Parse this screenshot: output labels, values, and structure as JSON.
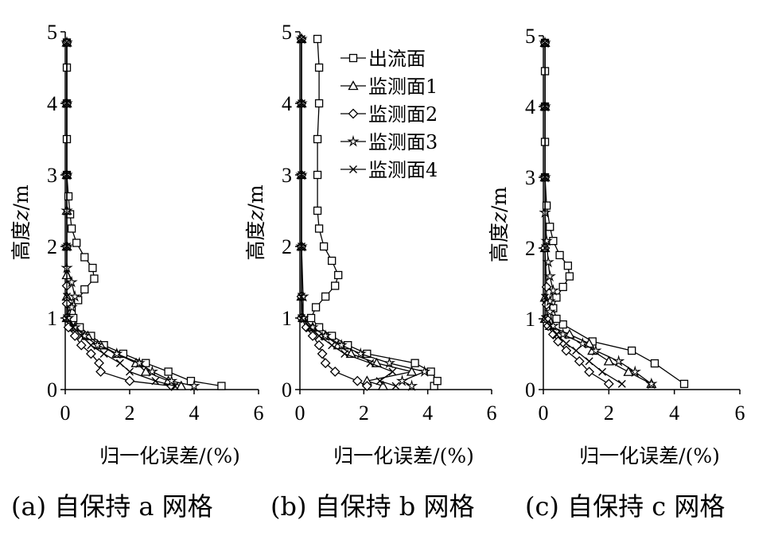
{
  "legend": [
    "出流面",
    "监测面1",
    "监测面2",
    "监测面3",
    "监测面4"
  ],
  "captions": [
    "(a)  自保持 a 网格",
    "(b)  自保持 b 网格",
    "(c)  自保持 c 网格"
  ],
  "chart_data": [
    {
      "type": "line",
      "panel": "a",
      "xlabel": "归一化误差/(%)",
      "ylabel": "高度z/m",
      "ylabel_italic": "z",
      "xlim": [
        0,
        6
      ],
      "ylim": [
        0,
        5
      ],
      "xticks": [
        0,
        2,
        4,
        6
      ],
      "yticks": [
        0,
        1,
        2,
        3,
        4,
        5
      ],
      "series": [
        {
          "name": "出流面",
          "marker": "square",
          "points": [
            [
              4.85,
              0.05
            ],
            [
              3.9,
              0.12
            ],
            [
              3.2,
              0.25
            ],
            [
              2.5,
              0.37
            ],
            [
              1.8,
              0.5
            ],
            [
              1.2,
              0.62
            ],
            [
              0.8,
              0.75
            ],
            [
              0.45,
              0.87
            ],
            [
              0.25,
              1.0
            ],
            [
              0.2,
              1.1
            ],
            [
              0.4,
              1.25
            ],
            [
              0.6,
              1.4
            ],
            [
              0.9,
              1.55
            ],
            [
              0.85,
              1.7
            ],
            [
              0.6,
              1.85
            ],
            [
              0.35,
              2.05
            ],
            [
              0.2,
              2.25
            ],
            [
              0.15,
              2.45
            ],
            [
              0.1,
              2.7
            ],
            [
              0.05,
              3.0
            ],
            [
              0.05,
              3.5
            ],
            [
              0.05,
              4.0
            ],
            [
              0.05,
              4.5
            ],
            [
              0.05,
              4.85
            ]
          ]
        },
        {
          "name": "监测面1",
          "marker": "triangle",
          "points": [
            [
              3.6,
              0.05
            ],
            [
              3.2,
              0.12
            ],
            [
              2.5,
              0.25
            ],
            [
              2.2,
              0.37
            ],
            [
              1.6,
              0.5
            ],
            [
              1.1,
              0.62
            ],
            [
              0.7,
              0.75
            ],
            [
              0.3,
              0.87
            ],
            [
              0.05,
              1.0
            ],
            [
              0.05,
              1.3
            ],
            [
              0.05,
              1.6
            ],
            [
              0.05,
              2.0
            ],
            [
              0.05,
              2.5
            ],
            [
              0.05,
              3.0
            ],
            [
              0.05,
              4.0
            ],
            [
              0.05,
              4.85
            ]
          ]
        },
        {
          "name": "监测面2",
          "marker": "diamond",
          "points": [
            [
              3.3,
              0.05
            ],
            [
              2.0,
              0.12
            ],
            [
              1.1,
              0.25
            ],
            [
              1.05,
              0.37
            ],
            [
              0.8,
              0.5
            ],
            [
              0.5,
              0.62
            ],
            [
              0.3,
              0.75
            ],
            [
              0.1,
              0.87
            ],
            [
              0.05,
              1.0
            ],
            [
              0.05,
              1.2
            ],
            [
              0.05,
              1.45
            ],
            [
              0.05,
              2.0
            ],
            [
              0.05,
              3.0
            ],
            [
              0.05,
              4.0
            ],
            [
              0.05,
              4.85
            ]
          ]
        },
        {
          "name": "监测面3",
          "marker": "star",
          "points": [
            [
              4.0,
              0.05
            ],
            [
              3.3,
              0.12
            ],
            [
              2.7,
              0.25
            ],
            [
              2.3,
              0.37
            ],
            [
              1.6,
              0.5
            ],
            [
              1.0,
              0.62
            ],
            [
              0.6,
              0.75
            ],
            [
              0.3,
              0.87
            ],
            [
              0.1,
              1.0
            ],
            [
              0.2,
              1.15
            ],
            [
              0.3,
              1.3
            ],
            [
              0.2,
              1.5
            ],
            [
              0.05,
              1.7
            ],
            [
              0.05,
              2.0
            ],
            [
              0.05,
              2.5
            ],
            [
              0.05,
              3.0
            ],
            [
              0.05,
              4.0
            ],
            [
              0.05,
              4.85
            ]
          ]
        },
        {
          "name": "监测面4",
          "marker": "x",
          "points": [
            [
              3.4,
              0.05
            ],
            [
              2.8,
              0.12
            ],
            [
              2.0,
              0.25
            ],
            [
              1.7,
              0.37
            ],
            [
              1.2,
              0.5
            ],
            [
              0.8,
              0.62
            ],
            [
              0.5,
              0.75
            ],
            [
              0.25,
              0.87
            ],
            [
              0.05,
              1.0
            ],
            [
              0.05,
              1.3
            ],
            [
              0.05,
              2.0
            ],
            [
              0.05,
              3.0
            ],
            [
              0.05,
              4.0
            ],
            [
              0.05,
              4.85
            ]
          ]
        }
      ]
    },
    {
      "type": "line",
      "panel": "b",
      "xlabel": "归一化误差/(%)",
      "ylabel": "高度z/m",
      "ylabel_italic": "z",
      "xlim": [
        0,
        6
      ],
      "ylim": [
        0,
        5
      ],
      "xticks": [
        0,
        2,
        4,
        6
      ],
      "yticks": [
        0,
        1,
        2,
        3,
        4,
        5
      ],
      "series": [
        {
          "name": "出流面",
          "marker": "square",
          "points": [
            [
              4.2,
              0.05
            ],
            [
              4.3,
              0.12
            ],
            [
              4.1,
              0.25
            ],
            [
              3.6,
              0.37
            ],
            [
              2.1,
              0.5
            ],
            [
              1.5,
              0.62
            ],
            [
              1.0,
              0.75
            ],
            [
              0.6,
              0.87
            ],
            [
              0.35,
              1.0
            ],
            [
              0.5,
              1.15
            ],
            [
              0.8,
              1.3
            ],
            [
              1.1,
              1.45
            ],
            [
              1.2,
              1.6
            ],
            [
              1.0,
              1.8
            ],
            [
              0.75,
              2.0
            ],
            [
              0.6,
              2.25
            ],
            [
              0.55,
              2.5
            ],
            [
              0.55,
              3.0
            ],
            [
              0.55,
              3.5
            ],
            [
              0.6,
              4.0
            ],
            [
              0.6,
              4.5
            ],
            [
              0.55,
              4.9
            ]
          ]
        },
        {
          "name": "监测面1",
          "marker": "triangle",
          "points": [
            [
              2.6,
              0.05
            ],
            [
              2.1,
              0.12
            ],
            [
              3.5,
              0.25
            ],
            [
              2.4,
              0.37
            ],
            [
              1.6,
              0.5
            ],
            [
              1.2,
              0.62
            ],
            [
              0.8,
              0.75
            ],
            [
              0.4,
              0.87
            ],
            [
              0.1,
              1.0
            ],
            [
              0.05,
              1.3
            ],
            [
              0.05,
              2.0
            ],
            [
              0.05,
              3.0
            ],
            [
              0.05,
              4.0
            ],
            [
              0.05,
              4.9
            ]
          ]
        },
        {
          "name": "监测面2",
          "marker": "diamond",
          "points": [
            [
              2.1,
              0.05
            ],
            [
              1.8,
              0.12
            ],
            [
              1.1,
              0.25
            ],
            [
              0.8,
              0.37
            ],
            [
              0.7,
              0.5
            ],
            [
              0.6,
              0.62
            ],
            [
              0.4,
              0.75
            ],
            [
              0.2,
              0.87
            ],
            [
              0.05,
              1.0
            ],
            [
              0.05,
              1.3
            ],
            [
              0.05,
              2.0
            ],
            [
              0.05,
              3.0
            ],
            [
              0.05,
              4.0
            ],
            [
              0.05,
              4.9
            ]
          ]
        },
        {
          "name": "监测面3",
          "marker": "star",
          "points": [
            [
              3.5,
              0.05
            ],
            [
              3.2,
              0.12
            ],
            [
              3.9,
              0.25
            ],
            [
              2.8,
              0.37
            ],
            [
              1.9,
              0.5
            ],
            [
              1.3,
              0.62
            ],
            [
              0.8,
              0.75
            ],
            [
              0.4,
              0.87
            ],
            [
              0.1,
              1.0
            ],
            [
              0.1,
              1.3
            ],
            [
              0.05,
              2.0
            ],
            [
              0.05,
              3.0
            ],
            [
              0.05,
              4.0
            ],
            [
              0.05,
              4.9
            ]
          ]
        },
        {
          "name": "监测面4",
          "marker": "x",
          "points": [
            [
              3.0,
              0.05
            ],
            [
              2.5,
              0.12
            ],
            [
              2.9,
              0.25
            ],
            [
              2.2,
              0.37
            ],
            [
              1.4,
              0.5
            ],
            [
              1.0,
              0.62
            ],
            [
              0.6,
              0.75
            ],
            [
              0.3,
              0.87
            ],
            [
              0.05,
              1.0
            ],
            [
              0.05,
              1.3
            ],
            [
              0.05,
              2.0
            ],
            [
              0.05,
              3.0
            ],
            [
              0.05,
              4.0
            ],
            [
              0.05,
              4.9
            ]
          ]
        }
      ]
    },
    {
      "type": "line",
      "panel": "c",
      "xlabel": "归一化误差/(%)",
      "ylabel": "高度z/m",
      "ylabel_italic": "z",
      "xlim": [
        0,
        6
      ],
      "ylim": [
        0,
        5
      ],
      "xticks": [
        0,
        2,
        4,
        6
      ],
      "yticks": [
        0,
        1,
        2,
        3,
        4,
        5
      ],
      "series": [
        {
          "name": "出流面",
          "marker": "square",
          "points": [
            [
              4.3,
              0.08
            ],
            [
              3.4,
              0.37
            ],
            [
              2.7,
              0.55
            ],
            [
              1.5,
              0.68
            ],
            [
              0.6,
              0.92
            ],
            [
              0.4,
              1.0
            ],
            [
              0.3,
              1.15
            ],
            [
              0.4,
              1.3
            ],
            [
              0.6,
              1.45
            ],
            [
              0.8,
              1.6
            ],
            [
              0.75,
              1.75
            ],
            [
              0.5,
              1.9
            ],
            [
              0.3,
              2.1
            ],
            [
              0.2,
              2.3
            ],
            [
              0.1,
              2.6
            ],
            [
              0.05,
              3.0
            ],
            [
              0.05,
              3.5
            ],
            [
              0.05,
              4.0
            ],
            [
              0.05,
              4.5
            ],
            [
              0.05,
              4.9
            ]
          ]
        },
        {
          "name": "监测面1",
          "marker": "triangle",
          "points": [
            [
              3.3,
              0.08
            ],
            [
              2.6,
              0.25
            ],
            [
              2.0,
              0.4
            ],
            [
              1.5,
              0.55
            ],
            [
              1.4,
              0.65
            ],
            [
              0.8,
              0.78
            ],
            [
              0.2,
              0.9
            ],
            [
              0.05,
              1.0
            ],
            [
              0.05,
              1.3
            ],
            [
              0.05,
              2.0
            ],
            [
              0.05,
              3.0
            ],
            [
              0.05,
              4.0
            ],
            [
              0.05,
              4.9
            ]
          ]
        },
        {
          "name": "监测面2",
          "marker": "diamond",
          "points": [
            [
              2.0,
              0.08
            ],
            [
              1.4,
              0.25
            ],
            [
              1.1,
              0.4
            ],
            [
              0.7,
              0.55
            ],
            [
              0.45,
              0.68
            ],
            [
              0.3,
              0.78
            ],
            [
              0.15,
              0.9
            ],
            [
              0.1,
              1.0
            ],
            [
              0.1,
              1.2
            ],
            [
              0.1,
              1.45
            ],
            [
              0.05,
              2.0
            ],
            [
              0.05,
              3.0
            ],
            [
              0.05,
              4.0
            ],
            [
              0.05,
              4.9
            ]
          ]
        },
        {
          "name": "监测面3",
          "marker": "star",
          "points": [
            [
              3.3,
              0.08
            ],
            [
              2.8,
              0.25
            ],
            [
              2.3,
              0.4
            ],
            [
              1.6,
              0.55
            ],
            [
              1.2,
              0.65
            ],
            [
              0.6,
              0.78
            ],
            [
              0.3,
              0.9
            ],
            [
              0.2,
              1.1
            ],
            [
              0.2,
              1.25
            ],
            [
              0.3,
              1.4
            ],
            [
              0.2,
              1.6
            ],
            [
              0.15,
              1.8
            ],
            [
              0.1,
              2.1
            ],
            [
              0.05,
              2.5
            ],
            [
              0.05,
              3.0
            ],
            [
              0.05,
              4.0
            ],
            [
              0.05,
              4.9
            ]
          ]
        },
        {
          "name": "监测面4",
          "marker": "x",
          "points": [
            [
              2.4,
              0.08
            ],
            [
              1.8,
              0.25
            ],
            [
              1.4,
              0.4
            ],
            [
              1.0,
              0.55
            ],
            [
              0.7,
              0.65
            ],
            [
              0.4,
              0.78
            ],
            [
              0.2,
              0.9
            ],
            [
              0.05,
              1.0
            ],
            [
              0.05,
              1.3
            ],
            [
              0.05,
              2.0
            ],
            [
              0.05,
              3.0
            ],
            [
              0.05,
              4.0
            ],
            [
              0.05,
              4.9
            ]
          ]
        }
      ]
    }
  ]
}
